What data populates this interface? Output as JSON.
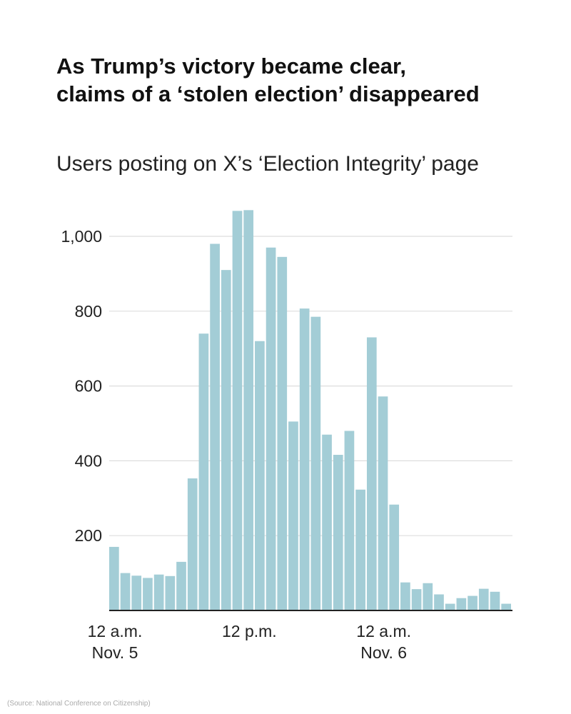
{
  "colors": {
    "bar": "#a3cdd6",
    "grid": "#dddddd",
    "axis": "#222222"
  },
  "chart_data": {
    "type": "bar",
    "title": "As Trump’s victory became clear, claims of a ‘stolen election’ disappeared",
    "title_lines": [
      "As Trump’s victory became clear,",
      "claims of a ‘stolen election’ disappeared"
    ],
    "subtitle": "Users posting on X’s ‘Election Integrity’ page",
    "source": "(Source: National Conference on Citizenship)",
    "ylim": [
      0,
      1000
    ],
    "yticks": [
      200,
      400,
      600,
      800,
      1000
    ],
    "ytick_labels": [
      "200",
      "400",
      "600",
      "800",
      "1,000"
    ],
    "grid": true,
    "x_tick_labels": [
      {
        "index": 0,
        "lines": [
          "12 a.m.",
          "Nov. 5"
        ]
      },
      {
        "index": 12,
        "lines": [
          "12 p.m."
        ]
      },
      {
        "index": 24,
        "lines": [
          "12 a.m.",
          "Nov. 6"
        ]
      }
    ],
    "values": [
      170,
      100,
      93,
      87,
      96,
      92,
      130,
      353,
      740,
      980,
      910,
      1068,
      1070,
      720,
      970,
      945,
      505,
      807,
      785,
      470,
      416,
      480,
      323,
      730,
      572,
      283,
      75,
      57,
      73,
      43,
      18,
      33,
      39,
      58,
      50,
      18
    ]
  }
}
